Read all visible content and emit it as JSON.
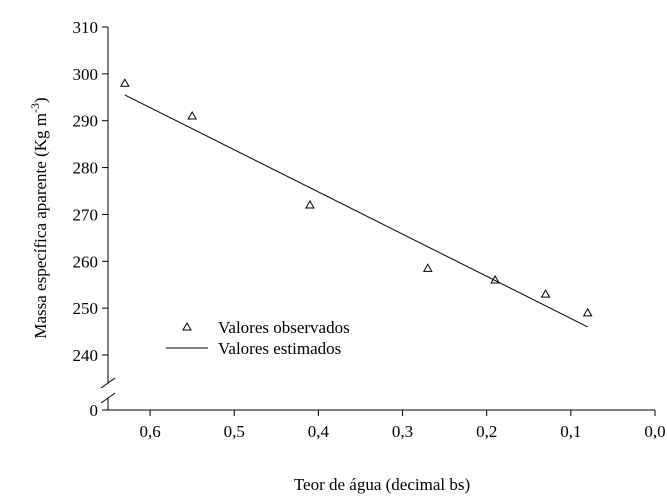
{
  "chart_data": {
    "type": "scatter",
    "x_label": "Teor de água (decimal bs)",
    "y_label": "Massa específica aparente (Kg m",
    "y_label_sup": "-3",
    "y_label_end": ")",
    "xlim": [
      0.65,
      0.0
    ],
    "xticks": [
      {
        "value": 0.6,
        "label": "0,6"
      },
      {
        "value": 0.5,
        "label": "0,5"
      },
      {
        "value": 0.4,
        "label": "0,4"
      },
      {
        "value": 0.3,
        "label": "0,3"
      },
      {
        "value": 0.2,
        "label": "0,2"
      },
      {
        "value": 0.1,
        "label": "0,1"
      },
      {
        "value": 0.0,
        "label": "0,0"
      }
    ],
    "ylim": [
      240,
      310
    ],
    "yticks": [
      0,
      240,
      250,
      260,
      270,
      280,
      290,
      300,
      310
    ],
    "y_break": true,
    "series": [
      {
        "name": "Valores observados",
        "color": "#000000",
        "mode": "markers",
        "x": [
          0.63,
          0.55,
          0.41,
          0.27,
          0.19,
          0.13,
          0.08
        ],
        "values": [
          298,
          291,
          272,
          258.5,
          256,
          253,
          249
        ]
      },
      {
        "name": "Valores estimados",
        "color": "#000000",
        "mode": "line",
        "x": [
          0.63,
          0.08
        ],
        "values": [
          295.5,
          246
        ]
      }
    ]
  }
}
